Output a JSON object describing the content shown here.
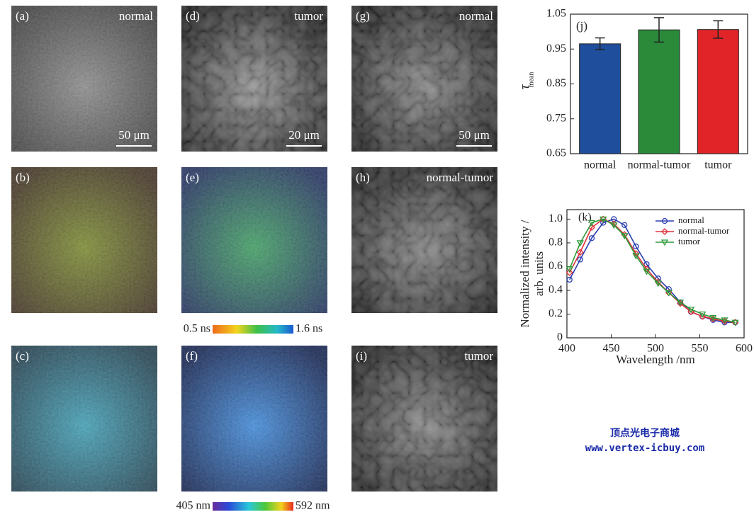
{
  "panels": [
    {
      "label": "(a)",
      "text": "normal",
      "scale": "50 μm"
    },
    {
      "label": "(b)"
    },
    {
      "label": "(c)"
    },
    {
      "label": "(d)",
      "text": "tumor",
      "scale": "20 μm"
    },
    {
      "label": "(e)"
    },
    {
      "label": "(f)"
    },
    {
      "label": "(g)",
      "text": "normal",
      "scale": "50 μm"
    },
    {
      "label": "(h)",
      "text": "normal-tumor"
    },
    {
      "label": "(i)",
      "text": "tumor"
    }
  ],
  "colorbars": [
    {
      "min": "0.5 ns",
      "max": "1.6 ns"
    },
    {
      "min": "405 nm",
      "max": "592 nm"
    }
  ],
  "watermark": {
    "name": "顶点光电子商城",
    "url": "www.vertex-icbuy.com"
  },
  "chart_data": [
    {
      "type": "bar",
      "title": "(j)",
      "y_label": "τ",
      "y_label_sub": "mean",
      "categories": [
        "normal",
        "normal-tumor",
        "tumor"
      ],
      "values": [
        0.965,
        1.005,
        1.006
      ],
      "errors": [
        0.017,
        0.035,
        0.025
      ],
      "colors": [
        "#1f4e9c",
        "#2a8a3a",
        "#e02428"
      ],
      "ylim": [
        0.65,
        1.05
      ],
      "yticks": [
        0.65,
        0.75,
        0.85,
        0.95,
        1.05
      ]
    },
    {
      "type": "line",
      "title": "(k)",
      "x_label": "Wavelength /nm",
      "y_label": [
        "Normalized intensity /",
        "arb. units"
      ],
      "x": [
        403,
        415,
        428,
        441,
        453,
        465,
        478,
        490,
        503,
        515,
        528,
        540,
        553,
        565,
        578,
        590
      ],
      "series": [
        {
          "name": "normal",
          "color": "#2b3fb0",
          "marker": "circle",
          "values": [
            0.49,
            0.66,
            0.84,
            0.97,
            1.0,
            0.95,
            0.77,
            0.62,
            0.5,
            0.41,
            0.3,
            0.22,
            0.18,
            0.15,
            0.13,
            0.13
          ]
        },
        {
          "name": "normal-tumor",
          "color": "#e0303a",
          "marker": "diamond",
          "values": [
            0.55,
            0.72,
            0.93,
            1.0,
            0.96,
            0.87,
            0.71,
            0.58,
            0.47,
            0.38,
            0.29,
            0.22,
            0.18,
            0.16,
            0.14,
            0.13
          ]
        },
        {
          "name": "tumor",
          "color": "#2e9a3a",
          "marker": "triangle",
          "values": [
            0.58,
            0.8,
            0.97,
            1.0,
            0.95,
            0.86,
            0.69,
            0.56,
            0.46,
            0.38,
            0.3,
            0.24,
            0.2,
            0.17,
            0.15,
            0.13
          ]
        }
      ],
      "xlim": [
        400,
        600
      ],
      "xticks": [
        400,
        450,
        500,
        550,
        600
      ],
      "ylim": [
        0,
        1.08
      ],
      "yticks": [
        0,
        0.2,
        0.4,
        0.6,
        0.8,
        {
          "value": 1,
          "label": "1.0"
        }
      ],
      "legend": "upper right"
    }
  ]
}
